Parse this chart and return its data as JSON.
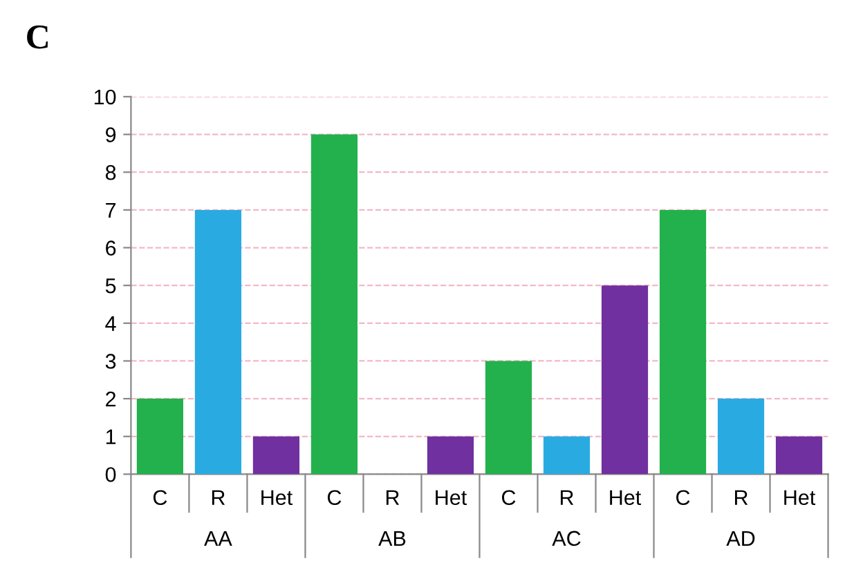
{
  "chart_data": {
    "type": "bar",
    "title": "C",
    "categories": [
      "C",
      "R",
      "Het",
      "C",
      "R",
      "Het",
      "C",
      "R",
      "Het",
      "C",
      "R",
      "Het"
    ],
    "values": [
      2,
      7,
      1,
      9,
      0,
      1,
      3,
      1,
      5,
      7,
      2,
      1
    ],
    "colors": [
      "#22b14c",
      "#29abe2",
      "#7030a0",
      "#22b14c",
      "#29abe2",
      "#7030a0",
      "#22b14c",
      "#29abe2",
      "#7030a0",
      "#22b14c",
      "#29abe2",
      "#7030a0"
    ],
    "annotations": [
      "AA",
      "AB",
      "AC",
      "AD"
    ],
    "ylim": [
      0,
      10
    ],
    "yticks": [
      0,
      1,
      2,
      3,
      4,
      5,
      6,
      7,
      8,
      9,
      10
    ],
    "grid": "y"
  }
}
